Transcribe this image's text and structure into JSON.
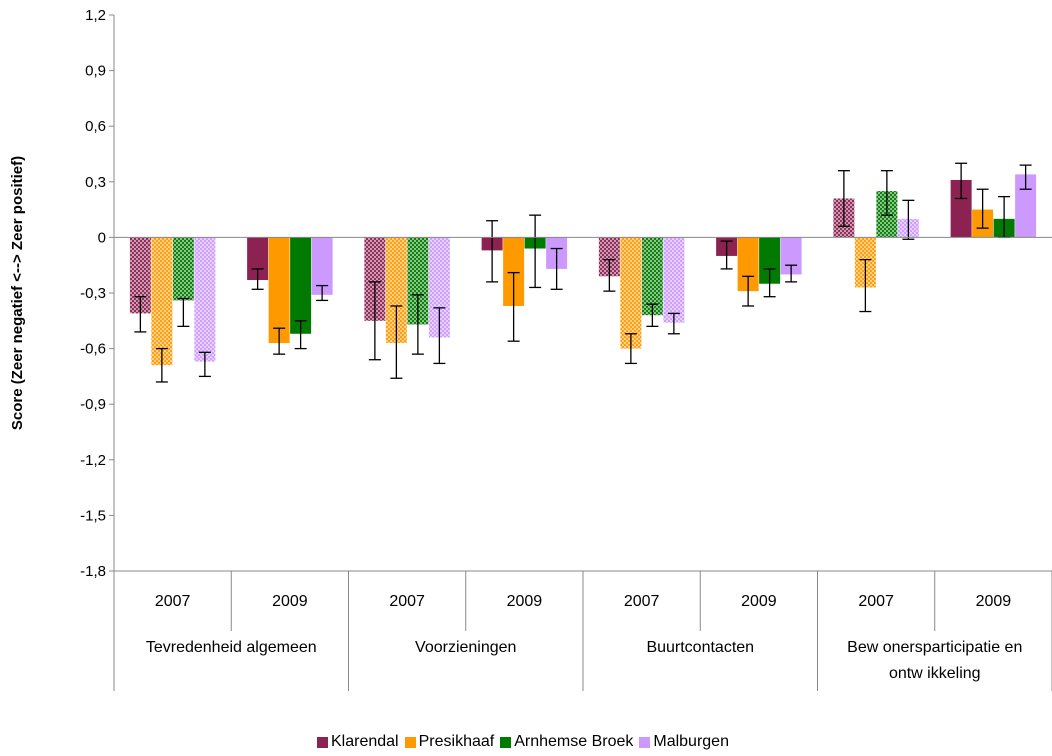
{
  "chart_data": {
    "type": "bar",
    "title": "",
    "xlabel": "",
    "ylabel": "Score (Zeer negatief <--> Zeer positief)",
    "ylim": [
      -1.8,
      1.2
    ],
    "ytick_step": 0.3,
    "ytick_labels": [
      "1,2",
      "0,9",
      "0,6",
      "0,3",
      "0",
      "-0,3",
      "-0,6",
      "-0,9",
      "-1,2",
      "-1,5",
      "-1,8"
    ],
    "grid": false,
    "legend_position": "bottom",
    "groups": [
      {
        "label": "Tevredenheid algemeen",
        "lines": [
          "Tevredenheid algemeen"
        ]
      },
      {
        "label": "Voorzieningen",
        "lines": [
          "Voorzieningen"
        ]
      },
      {
        "label": "Buurtcontacten",
        "lines": [
          "Buurtcontacten"
        ]
      },
      {
        "label": "Bewonersparticipatie en ontwikkeling",
        "lines": [
          "Bew onersparticipatie en",
          "ontw ikkeling"
        ]
      }
    ],
    "categories": [
      "2007",
      "2009",
      "2007",
      "2009",
      "2007",
      "2009",
      "2007",
      "2009"
    ],
    "hatched_years": [
      "2007"
    ],
    "series": [
      {
        "name": "Klarendal",
        "color": "#8B2252",
        "values": [
          -0.41,
          -0.23,
          -0.45,
          -0.07,
          -0.21,
          -0.1,
          0.21,
          0.31
        ],
        "err_low": [
          -0.51,
          -0.28,
          -0.66,
          -0.24,
          -0.29,
          -0.17,
          0.06,
          0.21
        ],
        "err_high": [
          -0.32,
          -0.17,
          -0.24,
          0.09,
          -0.12,
          -0.02,
          0.36,
          0.4
        ]
      },
      {
        "name": "Presikhaaf",
        "color": "#FF9900",
        "values": [
          -0.69,
          -0.57,
          -0.57,
          -0.37,
          -0.6,
          -0.29,
          -0.27,
          0.15
        ],
        "err_low": [
          -0.78,
          -0.63,
          -0.76,
          -0.56,
          -0.68,
          -0.37,
          -0.4,
          0.05
        ],
        "err_high": [
          -0.6,
          -0.49,
          -0.37,
          -0.19,
          -0.52,
          -0.21,
          -0.12,
          0.26
        ]
      },
      {
        "name": "Arnhemse Broek",
        "color": "#007A00",
        "values": [
          -0.34,
          -0.52,
          -0.47,
          -0.06,
          -0.42,
          -0.25,
          0.25,
          0.1
        ],
        "err_low": [
          -0.48,
          -0.6,
          -0.63,
          -0.27,
          -0.48,
          -0.32,
          0.12,
          0.0
        ],
        "err_high": [
          -0.33,
          -0.45,
          -0.31,
          0.12,
          -0.36,
          -0.17,
          0.36,
          0.22
        ]
      },
      {
        "name": "Malburgen",
        "color": "#CC99FF",
        "values": [
          -0.67,
          -0.31,
          -0.54,
          -0.17,
          -0.46,
          -0.2,
          0.1,
          0.34
        ],
        "err_low": [
          -0.75,
          -0.34,
          -0.68,
          -0.28,
          -0.52,
          -0.24,
          -0.01,
          0.26
        ],
        "err_high": [
          -0.62,
          -0.26,
          -0.38,
          -0.06,
          -0.41,
          -0.15,
          0.2,
          0.39
        ]
      }
    ]
  }
}
